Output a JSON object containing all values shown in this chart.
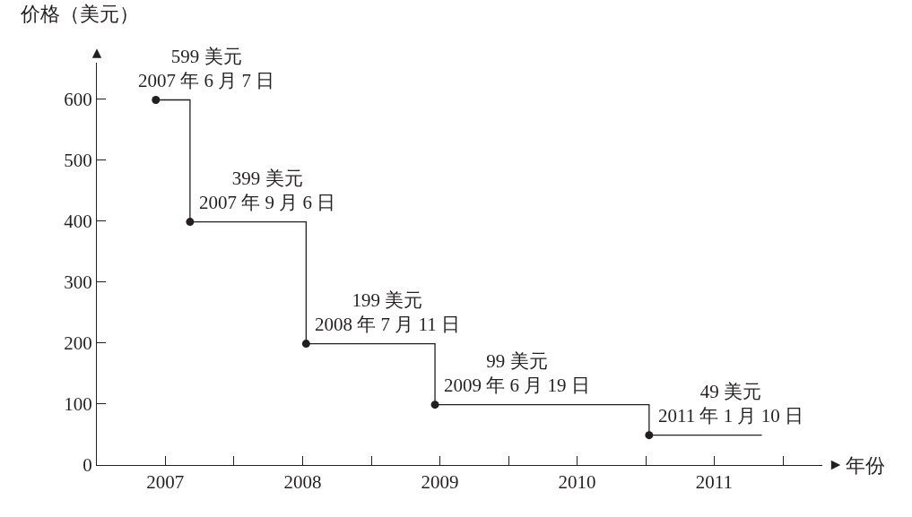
{
  "chart_data": {
    "type": "step",
    "ylabel": "价格（美元）",
    "xlabel": "年份",
    "series": [
      {
        "color": "#231f20",
        "marker": "none",
        "line_style": "solid",
        "x": [
          "2007-06-07",
          "2007-09-06",
          "2008-07-11",
          "2009-06-19",
          "2011-01-10",
          "2011-11-06"
        ],
        "values": [
          599,
          399,
          199,
          99,
          49,
          49
        ]
      },
      {
        "type": "scatter",
        "color": "#231f20",
        "marker": "circle",
        "x": [
          "2007-06-07",
          "2007-09-06",
          "2008-07-11",
          "2009-06-19",
          "2011-01-10"
        ],
        "values": [
          599,
          399,
          199,
          99,
          49
        ]
      }
    ],
    "xlim": [
      "2007-01-01",
      "2012-04-15"
    ],
    "xticks": [
      {
        "value": "2007-07-02",
        "label": "2007"
      },
      {
        "value": "2008-01-01",
        "label": null
      },
      {
        "value": "2008-07-02",
        "label": "2008"
      },
      {
        "value": "2009-01-01",
        "label": null
      },
      {
        "value": "2009-07-02",
        "label": "2009"
      },
      {
        "value": "2010-01-01",
        "label": null
      },
      {
        "value": "2010-07-02",
        "label": "2010"
      },
      {
        "value": "2011-01-01",
        "label": null
      },
      {
        "value": "2011-07-02",
        "label": "2011"
      },
      {
        "value": "2012-01-01",
        "label": null
      }
    ],
    "ylim": [
      0,
      660
    ],
    "yticks": [
      0,
      100,
      200,
      300,
      400,
      500,
      600
    ],
    "annotations": [
      {
        "text": "599 美元\n2007 年 6 月 7 日",
        "x": "2007-06-07",
        "y": 599
      },
      {
        "text": "399 美元\n2007 年 9 月 6 日",
        "x": "2007-09-06",
        "y": 399
      },
      {
        "text": "199 美元\n2008 年 7 月 11 日",
        "x": "2008-07-11",
        "y": 199
      },
      {
        "text": "99 美元\n2009 年 6 月 19 日",
        "x": "2009-06-19",
        "y": 99
      },
      {
        "text": "49 美元\n2011 年 1 月 10 日",
        "x": "2011-01-10",
        "y": 49
      }
    ]
  }
}
